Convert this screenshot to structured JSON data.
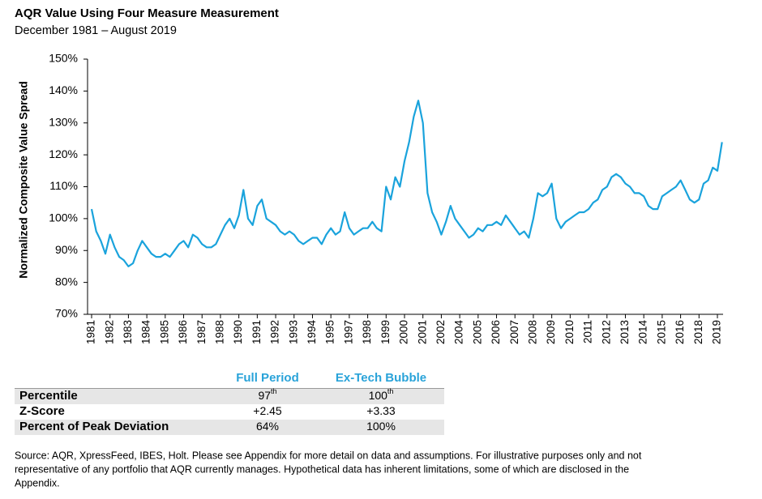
{
  "chart_data": {
    "type": "line",
    "title": "AQR Value Using Four Measure Measurement",
    "subtitle": "December 1981 – August 2019",
    "y_label": "Normalized Composite Value Spread",
    "categories": [
      "1981",
      null,
      null,
      null,
      "1982",
      null,
      null,
      null,
      "1983",
      null,
      null,
      null,
      "1984",
      null,
      null,
      null,
      "1985",
      null,
      null,
      null,
      "1986",
      null,
      null,
      null,
      "1987",
      null,
      null,
      null,
      "1988",
      null,
      null,
      null,
      "1990",
      null,
      null,
      null,
      "1991",
      null,
      null,
      null,
      "1992",
      null,
      null,
      null,
      "1993",
      null,
      null,
      null,
      "1994",
      null,
      null,
      null,
      "1995",
      null,
      null,
      null,
      "1997",
      null,
      null,
      null,
      "1998",
      null,
      null,
      null,
      "1999",
      null,
      null,
      null,
      "2000",
      null,
      null,
      null,
      "2001",
      null,
      null,
      null,
      "2002",
      null,
      null,
      null,
      "2004",
      null,
      null,
      null,
      "2005",
      null,
      null,
      null,
      "2006",
      null,
      null,
      null,
      "2007",
      null,
      null,
      null,
      "2008",
      null,
      null,
      null,
      "2009",
      null,
      null,
      null,
      "2010",
      null,
      null,
      null,
      "2011",
      null,
      null,
      null,
      "2012",
      null,
      null,
      null,
      "2013",
      null,
      null,
      null,
      "2014",
      null,
      null,
      null,
      "2015",
      null,
      null,
      null,
      "2016",
      null,
      null,
      null,
      "2018",
      null,
      null,
      null,
      "2019",
      null
    ],
    "series": [
      {
        "name": "Composite Value Spread",
        "color": "#1aa3dc",
        "values": [
          103,
          96,
          93,
          89,
          95,
          91,
          88,
          87,
          85,
          86,
          90,
          93,
          91,
          89,
          88,
          88,
          89,
          88,
          90,
          92,
          93,
          91,
          95,
          94,
          92,
          91,
          91,
          92,
          95,
          98,
          100,
          97,
          101,
          109,
          100,
          98,
          104,
          106,
          100,
          99,
          98,
          96,
          95,
          96,
          95,
          93,
          92,
          93,
          94,
          94,
          92,
          95,
          97,
          95,
          96,
          102,
          97,
          95,
          96,
          97,
          97,
          99,
          97,
          96,
          110,
          106,
          113,
          110,
          118,
          124,
          132,
          137,
          130,
          108,
          102,
          99,
          95,
          99,
          104,
          100,
          98,
          96,
          94,
          95,
          97,
          96,
          98,
          98,
          99,
          98,
          101,
          99,
          97,
          95,
          96,
          94,
          100,
          108,
          107,
          108,
          111,
          100,
          97,
          99,
          100,
          101,
          102,
          102,
          103,
          105,
          106,
          109,
          110,
          113,
          114,
          113,
          111,
          110,
          108,
          108,
          107,
          104,
          103,
          103,
          107,
          108,
          109,
          110,
          112,
          109,
          106,
          105,
          106,
          111,
          112,
          116,
          115,
          124
        ]
      }
    ],
    "ylim": [
      70,
      150
    ],
    "yticks": [
      {
        "value": 70,
        "label": "70%"
      },
      {
        "value": 80,
        "label": "80%"
      },
      {
        "value": 90,
        "label": "90%"
      },
      {
        "value": 100,
        "label": "100%"
      },
      {
        "value": 110,
        "label": "110%"
      },
      {
        "value": 120,
        "label": "120%"
      },
      {
        "value": 130,
        "label": "130%"
      },
      {
        "value": 140,
        "label": "140%"
      },
      {
        "value": 150,
        "label": "150%"
      }
    ],
    "grid": false
  },
  "table": {
    "header": [
      "Full Period",
      "Ex-Tech Bubble"
    ],
    "rows": [
      {
        "label": "Percentile",
        "cells": [
          {
            "text": "97",
            "sup": "th"
          },
          {
            "text": "100",
            "sup": "th"
          }
        ]
      },
      {
        "label": "Z-Score",
        "cells": [
          {
            "text": "+2.45"
          },
          {
            "text": "+3.33"
          }
        ]
      },
      {
        "label": "Percent of Peak Deviation",
        "cells": [
          {
            "text": "64%"
          },
          {
            "text": "100%"
          }
        ]
      }
    ]
  },
  "footnote": [
    "Source: AQR, XpressFeed, IBES, Holt. Please see Appendix for more detail on data and assumptions. For illustrative purposes only and not",
    "representative of any portfolio that AQR currently manages. Hypothetical data has inherent limitations, some of which are disclosed in the",
    "Appendix."
  ]
}
